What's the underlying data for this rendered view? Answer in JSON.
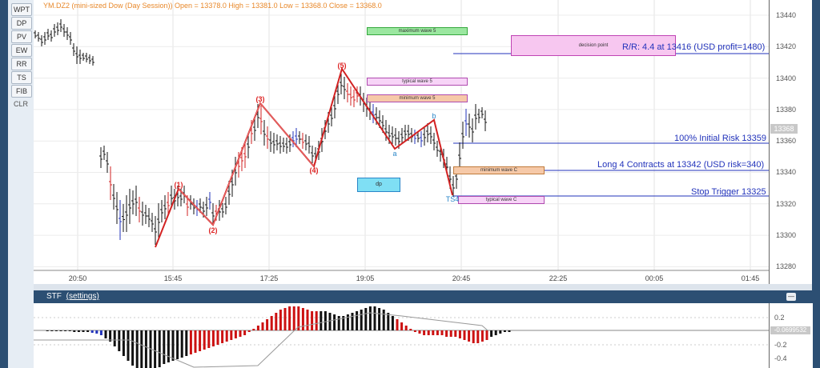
{
  "toolbar": {
    "buttons": [
      "WPT",
      "DP",
      "PV",
      "EW",
      "RR",
      "TS",
      "FIB"
    ],
    "clr": "CLR"
  },
  "chart_info": "YM.DZ2 (mini-sized Dow (Day Session)) Open = 13378.0 High = 13381.0 Low = 13368.0 Close = 13368.0",
  "price_axis": [
    "13440",
    "13420",
    "13400",
    "13380",
    "13360",
    "13340",
    "13320",
    "13300",
    "13280"
  ],
  "time_axis": [
    "20:50",
    "15:45",
    "17:25",
    "19:05",
    "20:45",
    "22:25",
    "00:05",
    "01:45"
  ],
  "current_price": "13368",
  "annotations": {
    "rr": "R/R: 4.4 at 13416 (USD profit=1480)",
    "initial_risk": "100% Initial Risk 13359",
    "long": "Long 4 Contracts at 13342 (USD risk=340)",
    "stop": "Stop Trigger 13325"
  },
  "boxes": {
    "max_wave5": "maximum wave 5",
    "typical_wave5": "typical wave 5",
    "min_wave5": "minimum wave 5",
    "decision": "decision point",
    "min_waveC": "minimum wave C",
    "typical_waveC": "typical wave C",
    "dp": "dp"
  },
  "wave_labels": [
    "(1)",
    "(2)",
    "(3)",
    "(4)",
    "(5)"
  ],
  "ab_labels": {
    "a": "a",
    "b": "b",
    "ts": "TS4"
  },
  "sub": {
    "title": "STF",
    "settings": "(settings)",
    "axis": [
      "0.2",
      "-0.2",
      "-0.4"
    ],
    "value": "-0.0699532"
  },
  "colors": {
    "accent": "#2c4f73",
    "wave": "#d22222",
    "annotation": "#2233bb"
  }
}
